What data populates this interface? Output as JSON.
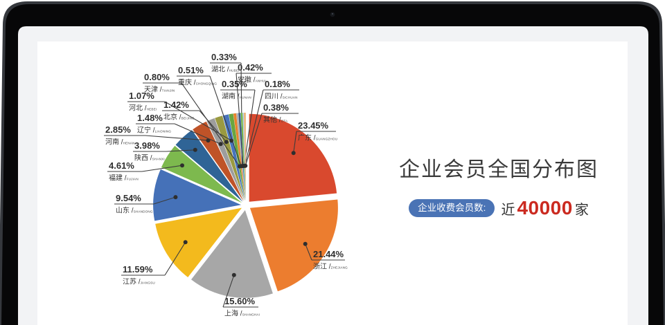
{
  "device": {
    "type": "laptop-mockup",
    "camera_dot": true,
    "bezel_color": "#070708",
    "screen_margin_color": "#f2f3f5"
  },
  "panel": {
    "title": "企业会员全国分布图",
    "badge_label": "企业收费会员数:",
    "stat_prefix": "近",
    "stat_value": "40000",
    "stat_suffix": "家",
    "badge_bg": "#4a73b5",
    "stat_value_color": "#cb2a20"
  },
  "chart_data": {
    "type": "pie",
    "title": "企业会员全国分布图",
    "unit": "%",
    "layout_hints": {
      "exploded": true,
      "start_angle_deg": 0,
      "direction": "clockwise",
      "labels": "callout-leader-lines-with-dots",
      "legend": "none"
    },
    "slices": [
      {
        "id": "guangdong",
        "name": "广东",
        "pinyin": "GUANGZHOU",
        "value": 23.45,
        "color": "#d9492e"
      },
      {
        "id": "zhejiang",
        "name": "浙江",
        "pinyin": "ZHEJIANG",
        "value": 21.44,
        "color": "#ec7d2f"
      },
      {
        "id": "shanghai",
        "name": "上海",
        "pinyin": "SHANGHAI",
        "value": 15.6,
        "color": "#a7a7a7"
      },
      {
        "id": "jiangsu",
        "name": "江苏",
        "pinyin": "JIANGSU",
        "value": 11.59,
        "color": "#f3ba1d"
      },
      {
        "id": "shandong",
        "name": "山东",
        "pinyin": "SHANDONG",
        "value": 9.54,
        "color": "#4571b8"
      },
      {
        "id": "fujian",
        "name": "福建",
        "pinyin": "FUJIAN",
        "value": 4.61,
        "color": "#7db94e"
      },
      {
        "id": "shaanxi",
        "name": "陕西",
        "pinyin": "SHANXI",
        "value": 3.98,
        "color": "#2f6496"
      },
      {
        "id": "henan",
        "name": "河南",
        "pinyin": "HENAN",
        "value": 2.85,
        "color": "#bf5328"
      },
      {
        "id": "liaoning",
        "name": "辽宁",
        "pinyin": "LIAONING",
        "value": 1.48,
        "color": "#9d9d9d"
      },
      {
        "id": "beijing",
        "name": "北京",
        "pinyin": "BEIJING",
        "value": 1.42,
        "color": "#9a9a41"
      },
      {
        "id": "hebei",
        "name": "河北",
        "pinyin": "HEBEI",
        "value": 1.07,
        "color": "#4874bd"
      },
      {
        "id": "tianjin",
        "name": "天津",
        "pinyin": "TIANJIN",
        "value": 0.8,
        "color": "#69a63f"
      },
      {
        "id": "chongqing",
        "name": "重庆",
        "pinyin": "CHONGQING",
        "value": 0.51,
        "color": "#e7832b"
      },
      {
        "id": "hubei",
        "name": "湖北",
        "pinyin": "HUBEI",
        "value": 0.33,
        "color": "#afafaf"
      },
      {
        "id": "anhui",
        "name": "安徽",
        "pinyin": "ANHUI",
        "value": 0.42,
        "color": "#5787c9"
      },
      {
        "id": "hunan",
        "name": "湖南",
        "pinyin": "HUNAN",
        "value": 0.35,
        "color": "#7cb74a"
      },
      {
        "id": "sichuan",
        "name": "四川",
        "pinyin": "SICHUAN",
        "value": 0.18,
        "color": "#aecfea"
      },
      {
        "id": "qita",
        "name": "其他",
        "pinyin": "OTA",
        "value": 0.38,
        "color": "#eab680"
      }
    ]
  }
}
